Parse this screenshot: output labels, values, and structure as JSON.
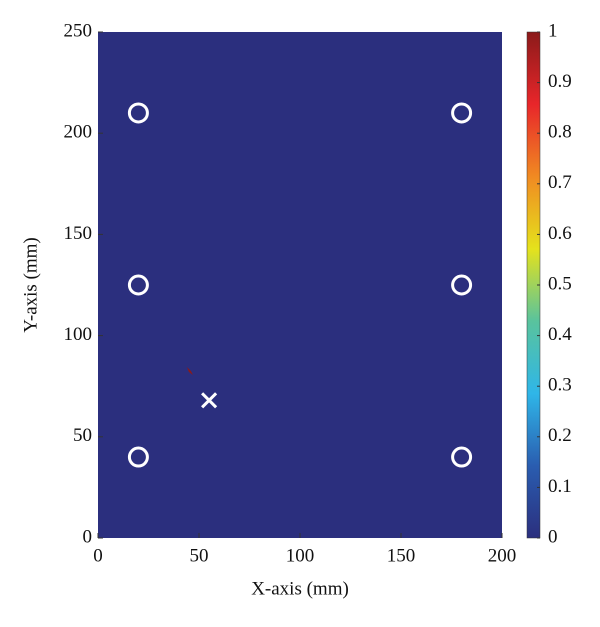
{
  "chart_data": {
    "type": "heatmap",
    "xlabel": "X-axis (mm)",
    "ylabel": "Y-axis (mm)",
    "xlim": [
      0,
      200
    ],
    "xticks": [
      0,
      50,
      100,
      150,
      200
    ],
    "ylim": [
      0,
      250
    ],
    "yticks": [
      0,
      50,
      100,
      150,
      200,
      250
    ],
    "clim": [
      0,
      1
    ],
    "cticks": [
      0,
      0.1,
      0.2,
      0.3,
      0.4,
      0.5,
      0.6,
      0.7,
      0.8,
      0.9,
      1
    ],
    "colormap": [
      "#2b2f7e",
      "#2a5db0",
      "#2fb6e8",
      "#59c39d",
      "#e5e21c",
      "#f08a22",
      "#e8262a",
      "#8b1a1a"
    ],
    "field": {
      "background": 0,
      "peak": {
        "x": 45,
        "y": 83,
        "value": 1
      }
    },
    "series": [
      {
        "marker": "circle",
        "color": "#ffffff",
        "x": [
          20,
          20,
          20,
          180,
          180,
          180
        ],
        "y": [
          40,
          125,
          210,
          40,
          125,
          210
        ]
      },
      {
        "marker": "x",
        "color": "#ffffff",
        "x": [
          55
        ],
        "y": [
          68
        ]
      }
    ]
  }
}
